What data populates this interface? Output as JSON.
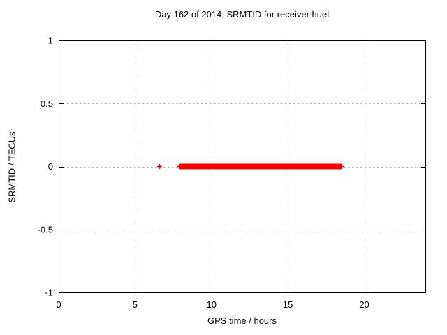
{
  "chart_data": {
    "type": "scatter",
    "title": "Day 162 of 2014, SRMTID for receiver huel",
    "xlabel": "GPS time / hours",
    "ylabel": "SRMTID / TECUs",
    "xlim": [
      0,
      24
    ],
    "ylim": [
      -1,
      1
    ],
    "xticks": [
      0,
      5,
      10,
      15,
      20
    ],
    "xtick_labels": [
      "0",
      "5",
      "10",
      "15",
      "20"
    ],
    "yticks": [
      -1,
      -0.5,
      0,
      0.5,
      1
    ],
    "ytick_labels": [
      "-1",
      "-0.5",
      "0",
      "0.5",
      "1"
    ],
    "grid": true,
    "legend_position": "none",
    "marker": "plus",
    "series": [
      {
        "name": "SRMTID",
        "color": "#ff0000",
        "isolated_points": [
          {
            "x": 6.6,
            "y": 0
          }
        ],
        "dense_segments": [
          {
            "x_start": 7.9,
            "x_end": 18.5,
            "y": 0
          }
        ]
      }
    ]
  },
  "colors": {
    "background": "#ffffff",
    "axis": "#000000",
    "grid": "#b0b0b0",
    "marker": "#ff0000",
    "text": "#000000"
  }
}
